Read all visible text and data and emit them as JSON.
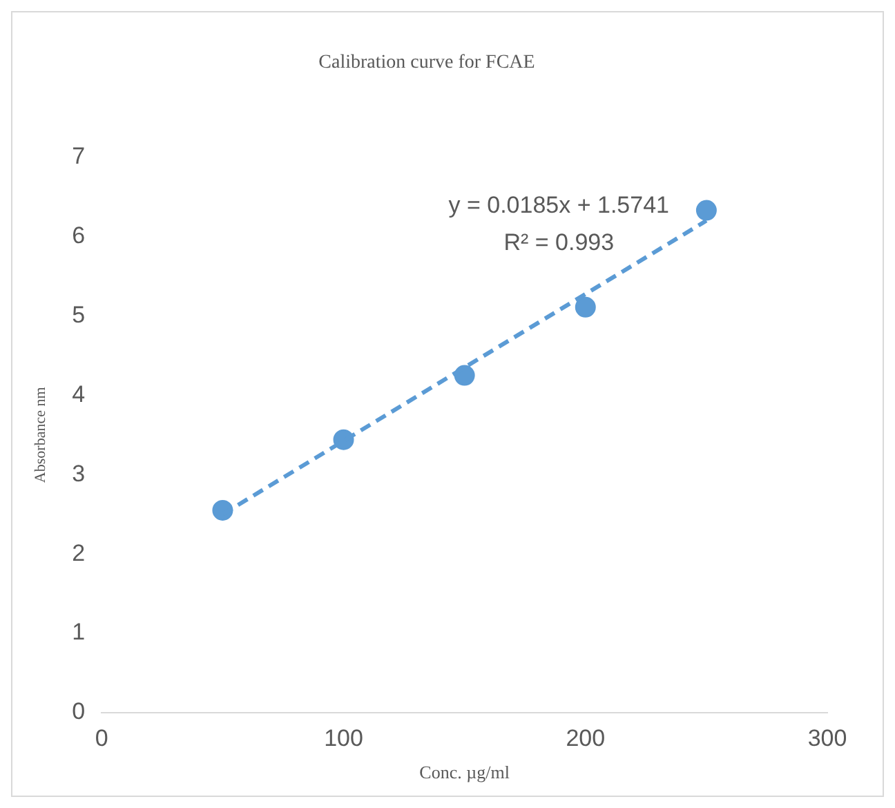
{
  "chart_data": {
    "type": "scatter",
    "title": "Calibration curve for FCAE",
    "xlabel": "Conc. µg/ml",
    "ylabel": "Absorbance nm",
    "x": [
      50,
      100,
      150,
      200,
      250
    ],
    "series": [
      {
        "color": "#5b9bd5",
        "values": [
          2.55,
          3.44,
          4.25,
          5.11,
          6.33
        ],
        "marker": "circle"
      },
      {
        "type": "line",
        "color": "#5b9bd5",
        "x": [
          50,
          250
        ],
        "values": [
          2.5,
          6.2
        ],
        "line_style": "dashed",
        "marker": "none"
      }
    ],
    "xlim": [
      0,
      300
    ],
    "xticks": [
      0,
      100,
      200,
      300
    ],
    "ylim": [
      0,
      7
    ],
    "yticks": [
      0,
      1,
      2,
      3,
      4,
      5,
      6,
      7
    ],
    "grid": false,
    "legend": false,
    "annotations": [
      "y = 0.0185x + 1.5741",
      "R² = 0.993"
    ]
  }
}
